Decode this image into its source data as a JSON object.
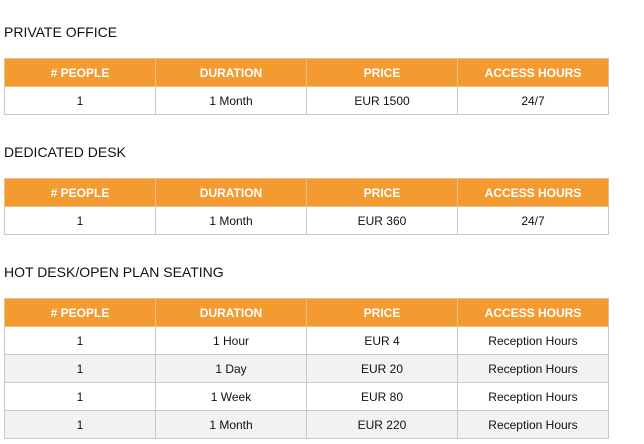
{
  "sections": [
    {
      "title": "PRIVATE OFFICE",
      "headers": [
        "# PEOPLE",
        "DURATION",
        "PRICE",
        "ACCESS HOURS"
      ],
      "rows": [
        [
          "1",
          "1 Month",
          "EUR 1500",
          "24/7"
        ]
      ]
    },
    {
      "title": "DEDICATED DESK",
      "headers": [
        "# PEOPLE",
        "DURATION",
        "PRICE",
        "ACCESS HOURS"
      ],
      "rows": [
        [
          "1",
          "1 Month",
          "EUR 360",
          "24/7"
        ]
      ]
    },
    {
      "title": "HOT DESK/OPEN PLAN SEATING",
      "headers": [
        "# PEOPLE",
        "DURATION",
        "PRICE",
        "ACCESS HOURS"
      ],
      "rows": [
        [
          "1",
          "1 Hour",
          "EUR 4",
          "Reception Hours"
        ],
        [
          "1",
          "1 Day",
          "EUR 20",
          "Reception Hours"
        ],
        [
          "1",
          "1 Week",
          "EUR 80",
          "Reception Hours"
        ],
        [
          "1",
          "1 Month",
          "EUR 220",
          "Reception Hours"
        ]
      ]
    }
  ]
}
